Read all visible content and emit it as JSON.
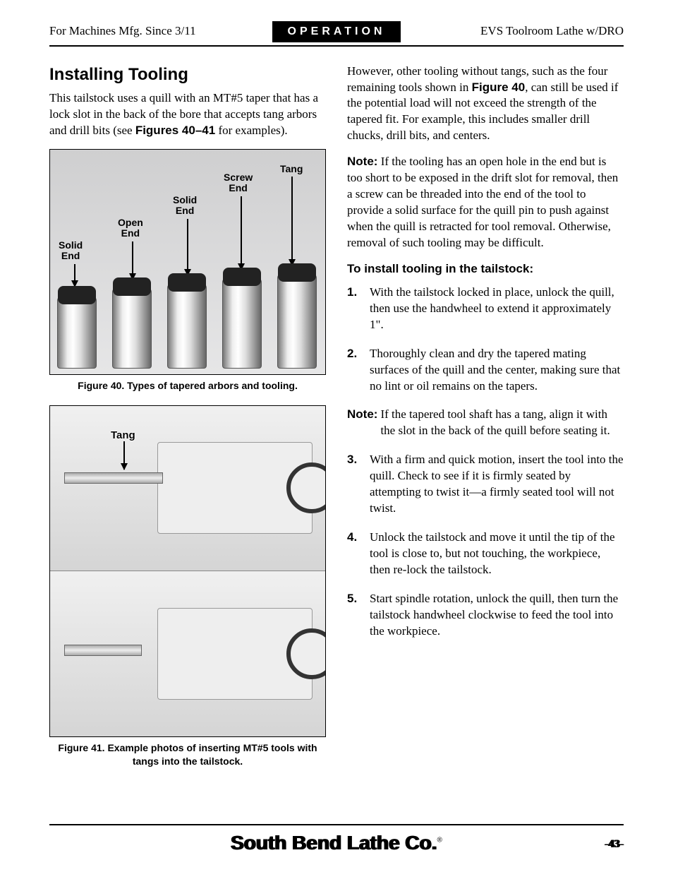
{
  "header": {
    "left": "For Machines Mfg. Since 3/11",
    "center": "OPERATION",
    "right": "EVS Toolroom Lathe w/DRO"
  },
  "section_title": "Installing Tooling",
  "intro": "This tailstock uses a quill with an MT#5 taper that has a lock slot in the back of the bore that accepts tang arbors and drill bits (see ",
  "intro_bold": "Figures 40–41",
  "intro_tail": " for examples).",
  "fig40": {
    "labels": {
      "solid_end_1": "Solid\nEnd",
      "open_end": "Open\nEnd",
      "solid_end_2": "Solid\nEnd",
      "screw_end": "Screw\nEnd",
      "tang": "Tang"
    },
    "caption": "Figure 40. Types of tapered arbors and tooling."
  },
  "fig41": {
    "tang_label": "Tang",
    "caption": "Figure 41. Example photos of inserting MT#5 tools with tangs into the tailstock."
  },
  "right_para1": "However, other tooling without tangs, such as the four remaining tools shown in ",
  "right_para1_bold": "Figure 40",
  "right_para1_tail": ", can still be used if the potential load will not exceed the strength of the tapered fit. For example, this includes smaller drill chucks, drill bits, and centers.",
  "note1_label": "Note:",
  "note1": " If the tooling has an open hole in the end but is too short to be exposed in the drift slot for removal, then a screw can be threaded into the end of the tool to provide a solid surface for the quill pin to push against when the quill is retracted for tool removal. Otherwise, removal of such tooling may be difficult.",
  "subhead": "To install tooling in the tailstock:",
  "steps": [
    "With the tailstock locked in place, unlock the quill, then use the handwheel to extend it approximately 1\".",
    "Thoroughly clean and dry the tapered mating surfaces of the quill and the center, making sure that no lint or oil remains on the tapers.",
    "With a firm and quick motion, insert the tool into the quill. Check to see if it is firmly seated by attempting to twist it—a firmly seated tool will not twist.",
    "Unlock the tailstock and move it until the tip of the tool is close to, but not touching, the workpiece, then re-lock the tailstock.",
    "Start spindle rotation, unlock the quill, then turn the tailstock handwheel clockwise to feed the tool into the workpiece."
  ],
  "note2_label": "Note:",
  "note2": " If the tapered tool shaft has a tang, align it with the slot in the back of the quill before seating it.",
  "footer": {
    "logo": "South Bend Lathe Co.",
    "page": "-43-"
  }
}
